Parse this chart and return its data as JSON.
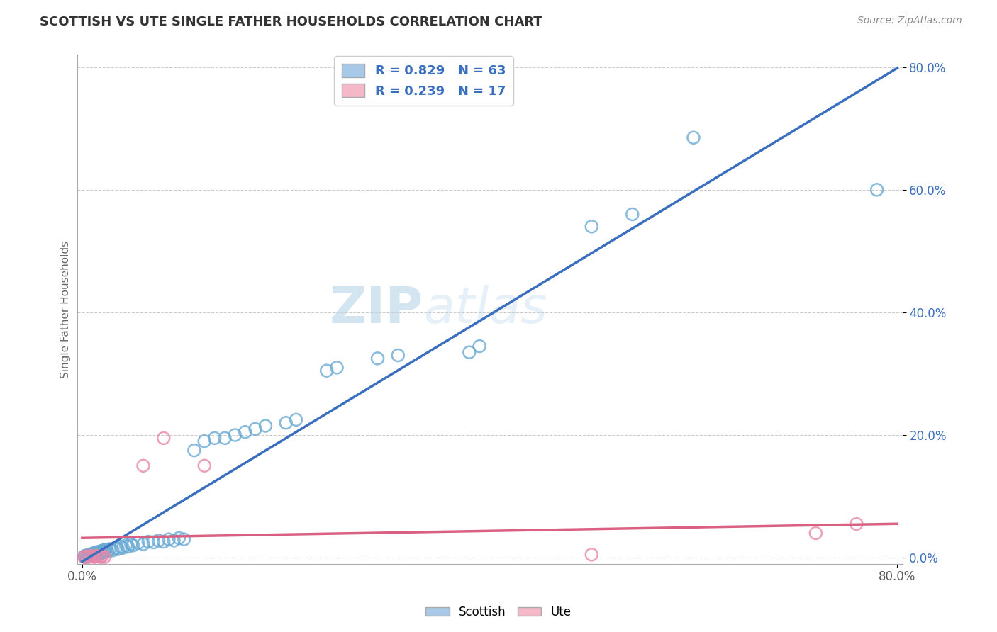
{
  "title": "SCOTTISH VS UTE SINGLE FATHER HOUSEHOLDS CORRELATION CHART",
  "source": "Source: ZipAtlas.com",
  "ylabel": "Single Father Households",
  "xlim": [
    0.0,
    0.8
  ],
  "ylim": [
    0.0,
    0.8
  ],
  "ytick_vals": [
    0.0,
    0.2,
    0.4,
    0.6,
    0.8
  ],
  "ytick_labels": [
    "0.0%",
    "20.0%",
    "40.0%",
    "60.0%",
    "80.0%"
  ],
  "scottish_R": 0.829,
  "scottish_N": 63,
  "ute_R": 0.239,
  "ute_N": 17,
  "scottish_color": "#a8c8e8",
  "scottish_edge_color": "#6aaad4",
  "ute_color": "#f4b8c8",
  "ute_edge_color": "#e888aa",
  "scottish_line_color": "#3a6fbf",
  "ute_line_color": "#d96080",
  "legend_text_color": "#3a6fbf",
  "ytick_color": "#3a6fbf",
  "background_color": "#ffffff",
  "watermark_color": "#c8e0f4",
  "title_color": "#333333",
  "source_color": "#888888",
  "grid_color": "#cccccc",
  "spine_color": "#aaaaaa",
  "ylabel_color": "#666666",
  "scottish_points": [
    [
      0.002,
      0.002
    ],
    [
      0.003,
      0.003
    ],
    [
      0.004,
      0.001
    ],
    [
      0.005,
      0.004
    ],
    [
      0.006,
      0.002
    ],
    [
      0.007,
      0.005
    ],
    [
      0.008,
      0.003
    ],
    [
      0.009,
      0.006
    ],
    [
      0.01,
      0.004
    ],
    [
      0.011,
      0.007
    ],
    [
      0.012,
      0.005
    ],
    [
      0.013,
      0.008
    ],
    [
      0.014,
      0.003
    ],
    [
      0.015,
      0.009
    ],
    [
      0.016,
      0.006
    ],
    [
      0.017,
      0.01
    ],
    [
      0.018,
      0.007
    ],
    [
      0.019,
      0.011
    ],
    [
      0.02,
      0.008
    ],
    [
      0.021,
      0.012
    ],
    [
      0.022,
      0.009
    ],
    [
      0.023,
      0.013
    ],
    [
      0.025,
      0.01
    ],
    [
      0.027,
      0.014
    ],
    [
      0.03,
      0.012
    ],
    [
      0.033,
      0.016
    ],
    [
      0.035,
      0.014
    ],
    [
      0.038,
      0.018
    ],
    [
      0.04,
      0.016
    ],
    [
      0.043,
      0.02
    ],
    [
      0.045,
      0.018
    ],
    [
      0.048,
      0.022
    ],
    [
      0.05,
      0.02
    ],
    [
      0.055,
      0.024
    ],
    [
      0.06,
      0.022
    ],
    [
      0.065,
      0.026
    ],
    [
      0.07,
      0.025
    ],
    [
      0.075,
      0.028
    ],
    [
      0.08,
      0.026
    ],
    [
      0.085,
      0.03
    ],
    [
      0.09,
      0.028
    ],
    [
      0.095,
      0.032
    ],
    [
      0.1,
      0.03
    ],
    [
      0.11,
      0.175
    ],
    [
      0.12,
      0.19
    ],
    [
      0.13,
      0.195
    ],
    [
      0.14,
      0.195
    ],
    [
      0.15,
      0.2
    ],
    [
      0.16,
      0.205
    ],
    [
      0.17,
      0.21
    ],
    [
      0.18,
      0.215
    ],
    [
      0.2,
      0.22
    ],
    [
      0.21,
      0.225
    ],
    [
      0.24,
      0.305
    ],
    [
      0.25,
      0.31
    ],
    [
      0.29,
      0.325
    ],
    [
      0.31,
      0.33
    ],
    [
      0.38,
      0.335
    ],
    [
      0.39,
      0.345
    ],
    [
      0.5,
      0.54
    ],
    [
      0.54,
      0.56
    ],
    [
      0.6,
      0.685
    ],
    [
      0.78,
      0.6
    ]
  ],
  "ute_points": [
    [
      0.002,
      0.001
    ],
    [
      0.004,
      0.002
    ],
    [
      0.006,
      0.001
    ],
    [
      0.008,
      0.003
    ],
    [
      0.01,
      0.002
    ],
    [
      0.012,
      0.001
    ],
    [
      0.014,
      0.003
    ],
    [
      0.016,
      0.002
    ],
    [
      0.018,
      0.001
    ],
    [
      0.02,
      0.003
    ],
    [
      0.022,
      0.001
    ],
    [
      0.06,
      0.15
    ],
    [
      0.08,
      0.195
    ],
    [
      0.12,
      0.15
    ],
    [
      0.5,
      0.005
    ],
    [
      0.72,
      0.04
    ],
    [
      0.76,
      0.055
    ]
  ]
}
